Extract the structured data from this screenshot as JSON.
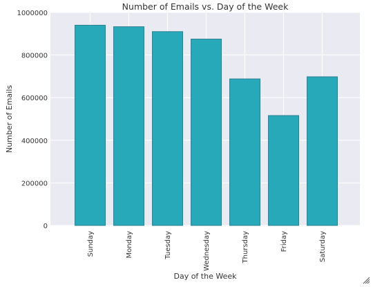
{
  "chart_data": {
    "type": "bar",
    "title": "Number of Emails vs. Day of the Week",
    "xlabel": "Day of the Week",
    "ylabel": "Number of Emails",
    "categories": [
      "Sunday",
      "Monday",
      "Tuesday",
      "Wednesday",
      "Thursday",
      "Friday",
      "Saturday"
    ],
    "values": [
      940000,
      933000,
      910000,
      875000,
      688000,
      516000,
      698000
    ],
    "ylim": [
      0,
      1000000
    ],
    "yticks": [
      0,
      200000,
      400000,
      600000,
      800000,
      1000000
    ],
    "ytick_labels": [
      "0",
      "200000",
      "400000",
      "600000",
      "800000",
      "1000000"
    ],
    "grid": true,
    "bar_color": "#27a9b9",
    "bar_edge_color": "#2f8090",
    "background_color": "#eaeaf2",
    "grid_color": "#ffffff"
  }
}
